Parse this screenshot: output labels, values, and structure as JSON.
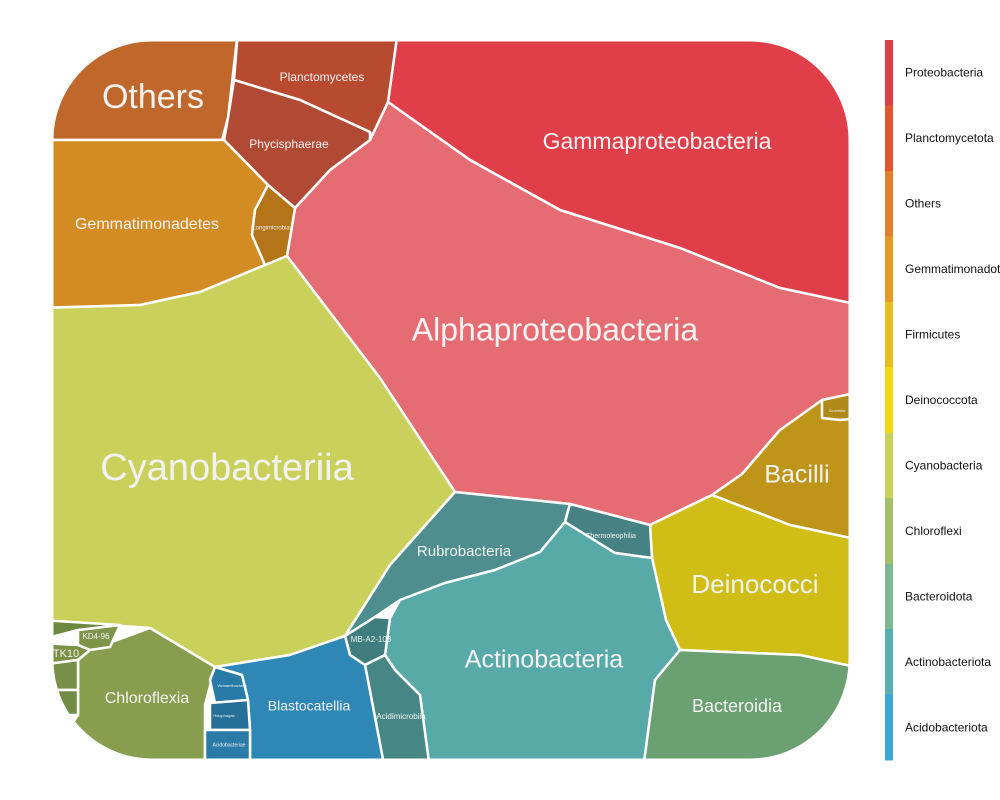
{
  "chart_data": {
    "type": "treemap",
    "legend": {
      "position": "right",
      "items": [
        {
          "label": "Proteobacteria",
          "color": "#E03E48"
        },
        {
          "label": "Planctomycetota",
          "color": "#E4552F"
        },
        {
          "label": "Others",
          "color": "#E47F2D"
        },
        {
          "label": "Gemmatimonadota",
          "color": "#E49A22"
        },
        {
          "label": "Firmicutes",
          "color": "#E8BE1D"
        },
        {
          "label": "Deinococcota",
          "color": "#EEDC10"
        },
        {
          "label": "Cyanobacteria",
          "color": "#C9D15A"
        },
        {
          "label": "Chloroflexi",
          "color": "#A4BE6A"
        },
        {
          "label": "Bacteroidota",
          "color": "#7FB790"
        },
        {
          "label": "Actinobacteriota",
          "color": "#58AFAF"
        },
        {
          "label": "Acidobacteriota",
          "color": "#3CA6DB"
        }
      ]
    },
    "cells": [
      {
        "label": "Gammaproteobacteria",
        "phylum": "Proteobacteria",
        "color": "#E03E48"
      },
      {
        "label": "Alphaproteobacteria",
        "phylum": "Proteobacteria",
        "color": "#E46C72"
      },
      {
        "label": "Others",
        "phylum": "Others",
        "color": "#C0682C"
      },
      {
        "label": "Planctomycetes",
        "phylum": "Planctomycetota",
        "color": "#B84A30"
      },
      {
        "label": "Phycisphaerae",
        "phylum": "Planctomycetota",
        "color": "#B04A34"
      },
      {
        "label": "Gemmatimonadetes",
        "phylum": "Gemmatimonadota",
        "color": "#D38C23"
      },
      {
        "label": "Longimicrobia",
        "phylum": "Gemmatimonadota",
        "color": "#B37517"
      },
      {
        "label": "Cyanobacteriia",
        "phylum": "Cyanobacteria",
        "color": "#C9D15A"
      },
      {
        "label": "Bacilli",
        "phylum": "Firmicutes",
        "color": "#BE9519"
      },
      {
        "label": "Clostridia",
        "phylum": "Firmicutes",
        "color": "#B08A18"
      },
      {
        "label": "Deinococci",
        "phylum": "Deinococcota",
        "color": "#D0BE16"
      },
      {
        "label": "Rubrobacteria",
        "phylum": "Actinobacteriota",
        "color": "#4E8E8F"
      },
      {
        "label": "Thermoleophilia",
        "phylum": "Actinobacteriota",
        "color": "#468283"
      },
      {
        "label": "Actinobacteria",
        "phylum": "Actinobacteriota",
        "color": "#58AAA9"
      },
      {
        "label": "MB-A2-108",
        "phylum": "Actinobacteriota",
        "color": "#3F7D7E"
      },
      {
        "label": "Acidimicrobiia",
        "phylum": "Actinobacteriota",
        "color": "#468786"
      },
      {
        "label": "Bacteroidia",
        "phylum": "Bacteroidota",
        "color": "#6BA072"
      },
      {
        "label": "Chloroflexia",
        "phylum": "Chloroflexi",
        "color": "#879E4E"
      },
      {
        "label": "KD4-96",
        "phylum": "Chloroflexi",
        "color": "#7E9448"
      },
      {
        "label": "TK10",
        "phylum": "Chloroflexi",
        "color": "#7B9246"
      },
      {
        "label": "",
        "phylum": "Chloroflexi",
        "color": "#76904A"
      },
      {
        "label": "",
        "phylum": "Chloroflexi",
        "color": "#718C44"
      },
      {
        "label": "",
        "phylum": "Chloroflexi",
        "color": "#6E8840"
      },
      {
        "label": "Blastocatellia",
        "phylum": "Acidobacteriota",
        "color": "#2E87B5"
      },
      {
        "label": "Vicinamibacteria",
        "phylum": "Acidobacteriota",
        "color": "#287BA6"
      },
      {
        "label": "Holophagae",
        "phylum": "Acidobacteriota",
        "color": "#256F98"
      },
      {
        "label": "Acidobacteriae",
        "phylum": "Acidobacteriota",
        "color": "#2A7BA8"
      }
    ]
  }
}
